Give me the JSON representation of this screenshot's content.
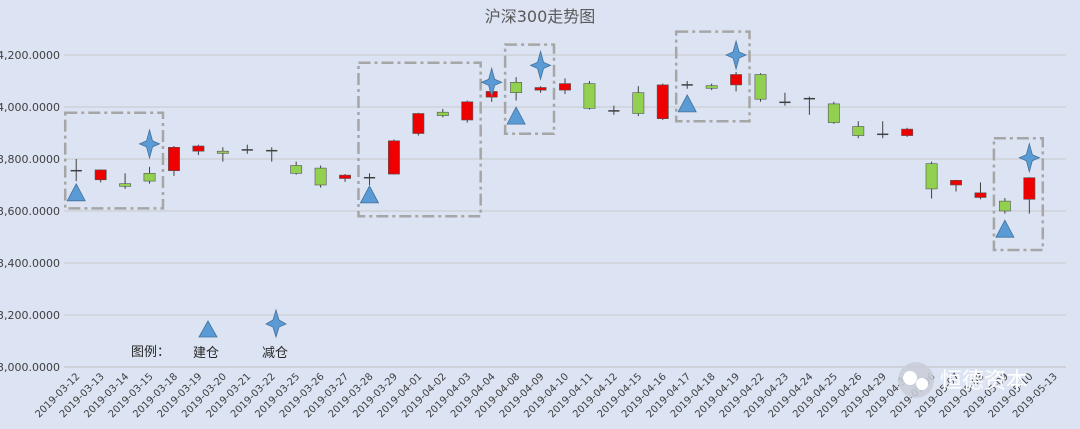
{
  "chart_data": {
    "type": "candlestick",
    "title": "沪深300走势图",
    "ylim": [
      3000,
      4300
    ],
    "yticks": [
      3000,
      3200,
      3400,
      3600,
      3800,
      4000,
      4200
    ],
    "ytick_labels": [
      "3,000.0000",
      "3,200.0000",
      "3,400.0000",
      "3,600.0000",
      "3,800.0000",
      "4,000.0000",
      "4,200.0000"
    ],
    "categories": [
      "2019-03-12",
      "2019-03-13",
      "2019-03-14",
      "2019-03-15",
      "2019-03-18",
      "2019-03-19",
      "2019-03-20",
      "2019-03-21",
      "2019-03-22",
      "2019-03-25",
      "2019-03-26",
      "2019-03-27",
      "2019-03-28",
      "2019-03-29",
      "2019-04-01",
      "2019-04-02",
      "2019-04-03",
      "2019-04-04",
      "2019-04-08",
      "2019-04-09",
      "2019-04-10",
      "2019-04-11",
      "2019-04-12",
      "2019-04-15",
      "2019-04-16",
      "2019-04-17",
      "2019-04-18",
      "2019-04-19",
      "2019-04-22",
      "2019-04-23",
      "2019-04-24",
      "2019-04-25",
      "2019-04-26",
      "2019-04-29",
      "2019-04-30",
      "2019-05-06",
      "2019-05-07",
      "2019-05-08",
      "2019-05-09",
      "2019-05-10",
      "2019-05-13"
    ],
    "ohlc": [
      [
        3755,
        3800,
        3715,
        3755
      ],
      [
        3720,
        3760,
        3710,
        3758
      ],
      [
        3705,
        3745,
        3685,
        3695
      ],
      [
        3745,
        3770,
        3705,
        3715
      ],
      [
        3755,
        3850,
        3735,
        3845
      ],
      [
        3830,
        3855,
        3815,
        3850
      ],
      [
        3830,
        3845,
        3790,
        3822
      ],
      [
        3835,
        3855,
        3820,
        3835
      ],
      [
        3832,
        3845,
        3790,
        3830
      ],
      [
        3775,
        3790,
        3740,
        3745
      ],
      [
        3765,
        3775,
        3690,
        3700
      ],
      [
        3725,
        3742,
        3712,
        3738
      ],
      [
        3728,
        3745,
        3700,
        3728
      ],
      [
        3742,
        3875,
        3740,
        3870
      ],
      [
        3898,
        3978,
        3890,
        3975
      ],
      [
        3980,
        3992,
        3960,
        3967
      ],
      [
        3950,
        4025,
        3940,
        4020
      ],
      [
        4038,
        4062,
        4020,
        4060
      ],
      [
        4095,
        4115,
        4025,
        4055
      ],
      [
        4065,
        4080,
        4055,
        4075
      ],
      [
        4065,
        4110,
        4050,
        4090
      ],
      [
        4090,
        4100,
        3990,
        3995
      ],
      [
        3985,
        4005,
        3970,
        3985
      ],
      [
        4055,
        4080,
        3965,
        3975
      ],
      [
        3955,
        4090,
        3950,
        4085
      ],
      [
        4085,
        4100,
        4070,
        4080
      ],
      [
        4082,
        4090,
        4065,
        4072
      ],
      [
        4085,
        4135,
        4060,
        4125
      ],
      [
        4125,
        4130,
        4020,
        4030
      ],
      [
        4018,
        4055,
        4005,
        4018
      ],
      [
        4032,
        4040,
        3970,
        4032
      ],
      [
        4012,
        4020,
        3935,
        3940
      ],
      [
        3925,
        3945,
        3880,
        3890
      ],
      [
        3895,
        3945,
        3880,
        3895
      ],
      [
        3890,
        3920,
        3885,
        3915
      ],
      [
        3782,
        3790,
        3648,
        3685
      ],
      [
        3700,
        3720,
        3675,
        3718
      ],
      [
        3652,
        3710,
        3645,
        3670
      ],
      [
        3638,
        3650,
        3590,
        3600
      ],
      [
        3645,
        3730,
        3590,
        3728
      ],
      null
    ],
    "colors": {
      "up": "#ee0000",
      "down": "#92d050",
      "grid": "#c9c9c9",
      "marker": "#5b9bd5",
      "box": "#a6a6a6"
    },
    "buy_markers": [
      {
        "date": "2019-03-12",
        "price": 3670
      },
      {
        "date": "2019-03-28",
        "price": 3662
      },
      {
        "date": "2019-04-08",
        "price": 3965
      },
      {
        "date": "2019-04-17",
        "price": 4012
      },
      {
        "date": "2019-05-09",
        "price": 3530
      }
    ],
    "sell_markers": [
      {
        "date": "2019-03-15",
        "price": 3858
      },
      {
        "date": "2019-04-04",
        "price": 4095
      },
      {
        "date": "2019-04-09",
        "price": 4160
      },
      {
        "date": "2019-04-19",
        "price": 4200
      },
      {
        "date": "2019-05-10",
        "price": 3805
      }
    ],
    "highlight_boxes": [
      {
        "from": "2019-03-12",
        "to": "2019-03-15",
        "ymin": 3610,
        "ymax": 3978
      },
      {
        "from": "2019-03-28",
        "to": "2019-04-03",
        "ymin": 3580,
        "ymax": 4170
      },
      {
        "from": "2019-04-08",
        "to": "2019-04-09",
        "ymin": 3897,
        "ymax": 4240
      },
      {
        "from": "2019-04-17",
        "to": "2019-04-19",
        "ymin": 3945,
        "ymax": 4290
      },
      {
        "from": "2019-05-09",
        "to": "2019-05-10",
        "ymin": 3450,
        "ymax": 3880
      }
    ],
    "legend": {
      "label": "图例：",
      "buy": "建仓",
      "sell": "减仓"
    }
  },
  "watermark": {
    "text": "恒德资本"
  }
}
